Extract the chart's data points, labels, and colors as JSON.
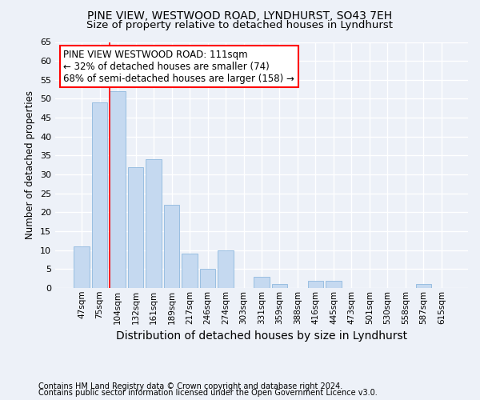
{
  "title1": "PINE VIEW, WESTWOOD ROAD, LYNDHURST, SO43 7EH",
  "title2": "Size of property relative to detached houses in Lyndhurst",
  "xlabel": "Distribution of detached houses by size in Lyndhurst",
  "ylabel": "Number of detached properties",
  "bar_labels": [
    "47sqm",
    "75sqm",
    "104sqm",
    "132sqm",
    "161sqm",
    "189sqm",
    "217sqm",
    "246sqm",
    "274sqm",
    "303sqm",
    "331sqm",
    "359sqm",
    "388sqm",
    "416sqm",
    "445sqm",
    "473sqm",
    "501sqm",
    "530sqm",
    "558sqm",
    "587sqm",
    "615sqm"
  ],
  "bar_values": [
    11,
    49,
    52,
    32,
    34,
    22,
    9,
    5,
    10,
    0,
    3,
    1,
    0,
    2,
    2,
    0,
    0,
    0,
    0,
    1,
    0
  ],
  "bar_color": "#c5d9f0",
  "bar_edge_color": "#8fb8de",
  "highlight_line_index": 2,
  "annotation_text": "PINE VIEW WESTWOOD ROAD: 111sqm\n← 32% of detached houses are smaller (74)\n68% of semi-detached houses are larger (158) →",
  "annotation_box_facecolor": "white",
  "annotation_box_edgecolor": "red",
  "vline_color": "red",
  "background_color": "#edf1f8",
  "grid_color": "white",
  "ylim": [
    0,
    65
  ],
  "yticks": [
    0,
    5,
    10,
    15,
    20,
    25,
    30,
    35,
    40,
    45,
    50,
    55,
    60,
    65
  ],
  "title1_fontsize": 10,
  "title2_fontsize": 9.5,
  "ylabel_fontsize": 8.5,
  "xlabel_fontsize": 10,
  "xtick_fontsize": 7.5,
  "ytick_fontsize": 8,
  "annotation_fontsize": 8.5,
  "footer1": "Contains HM Land Registry data © Crown copyright and database right 2024.",
  "footer2": "Contains public sector information licensed under the Open Government Licence v3.0.",
  "footer_fontsize": 7
}
